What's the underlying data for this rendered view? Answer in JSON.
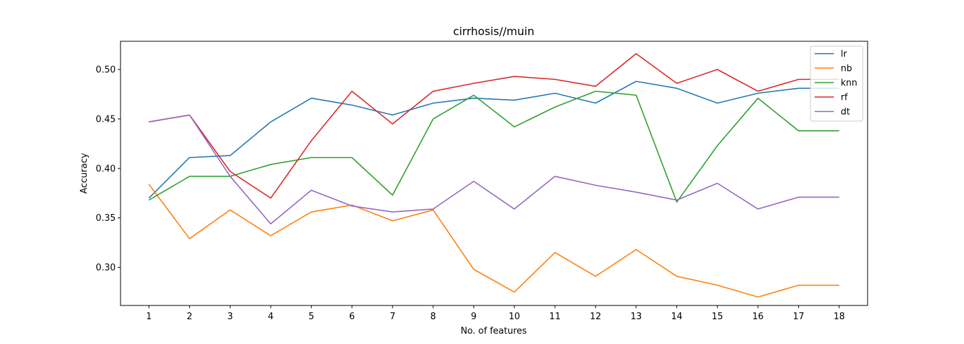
{
  "chart_data": {
    "type": "line",
    "title": "cirrhosis//muin",
    "xlabel": "No. of features",
    "ylabel": "Accuracy",
    "x": [
      1,
      2,
      3,
      4,
      5,
      6,
      7,
      8,
      9,
      10,
      11,
      12,
      13,
      14,
      15,
      16,
      17,
      18
    ],
    "xlim": [
      0.3,
      18.7
    ],
    "ylim": [
      0.2615,
      0.5285
    ],
    "yticks": [
      0.3,
      0.35,
      0.4,
      0.45,
      0.5
    ],
    "ytick_labels": [
      "0.30",
      "0.35",
      "0.40",
      "0.45",
      "0.50"
    ],
    "xtick_labels": [
      "1",
      "2",
      "3",
      "4",
      "5",
      "6",
      "7",
      "8",
      "9",
      "10",
      "11",
      "12",
      "13",
      "14",
      "15",
      "16",
      "17",
      "18"
    ],
    "grid": false,
    "legend_position": "top-right",
    "series": [
      {
        "name": "lr",
        "color": "#1f77b4",
        "values": [
          0.37,
          0.411,
          0.413,
          0.447,
          0.471,
          0.464,
          0.454,
          0.466,
          0.471,
          0.469,
          0.476,
          0.466,
          0.488,
          0.481,
          0.466,
          0.476,
          0.481,
          0.481
        ]
      },
      {
        "name": "nb",
        "color": "#ff7f0e",
        "values": [
          0.384,
          0.329,
          0.358,
          0.332,
          0.356,
          0.363,
          0.347,
          0.358,
          0.298,
          0.275,
          0.315,
          0.291,
          0.318,
          0.291,
          0.282,
          0.27,
          0.282,
          0.282
        ]
      },
      {
        "name": "knn",
        "color": "#2ca02c",
        "values": [
          0.368,
          0.392,
          0.392,
          0.404,
          0.411,
          0.411,
          0.373,
          0.45,
          0.474,
          0.442,
          0.462,
          0.478,
          0.474,
          0.366,
          0.423,
          0.471,
          0.438,
          0.438
        ]
      },
      {
        "name": "rf",
        "color": "#d62728",
        "values": [
          0.447,
          0.454,
          0.397,
          0.37,
          0.428,
          0.478,
          0.445,
          0.478,
          0.486,
          0.493,
          0.49,
          0.483,
          0.516,
          0.486,
          0.5,
          0.478,
          0.49,
          0.49
        ]
      },
      {
        "name": "dt",
        "color": "#9467bd",
        "values": [
          0.447,
          0.454,
          0.392,
          0.344,
          0.378,
          0.362,
          0.356,
          0.359,
          0.387,
          0.359,
          0.392,
          0.383,
          0.376,
          0.368,
          0.385,
          0.359,
          0.371,
          0.371
        ]
      }
    ]
  }
}
